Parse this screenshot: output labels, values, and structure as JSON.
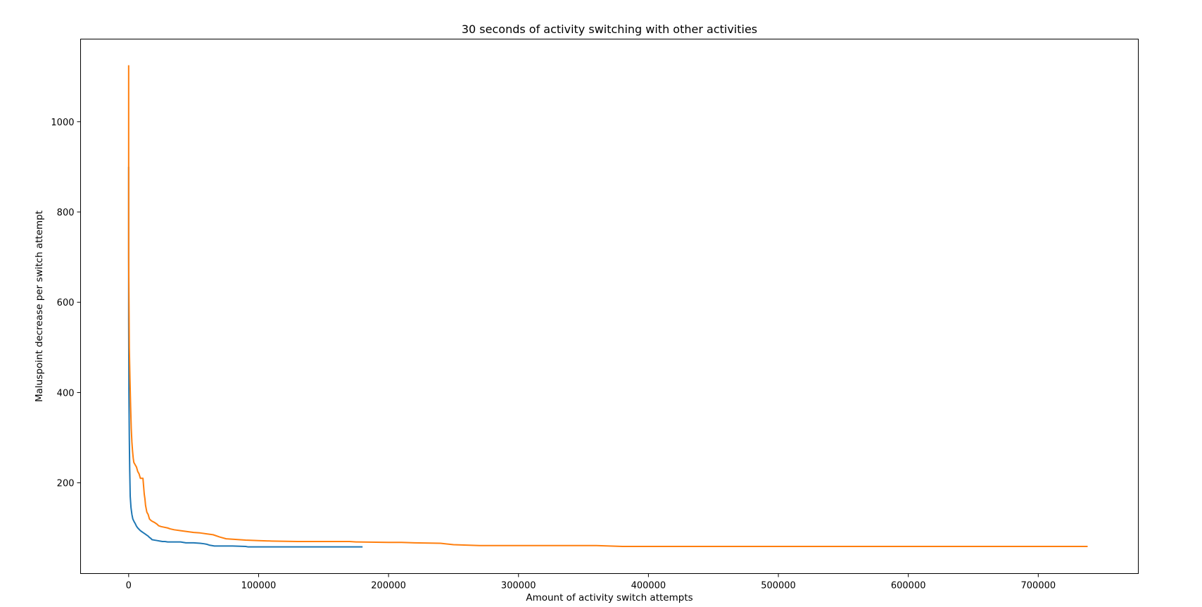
{
  "chart_data": {
    "type": "line",
    "title": "30 seconds of activity switching with other activities",
    "xlabel": "Amount of activity switch attempts",
    "ylabel": "Maluspoint decrease per switch attempt",
    "xlim": [
      -37000,
      777000
    ],
    "ylim": [
      -1,
      1183
    ],
    "xticks": [
      0,
      100000,
      200000,
      300000,
      400000,
      500000,
      600000,
      700000
    ],
    "yticks": [
      200,
      400,
      600,
      800,
      1000
    ],
    "grid": false,
    "legend": "none",
    "series": [
      {
        "color": "#1f77b4",
        "x": [
          0,
          0,
          200,
          500,
          800,
          1200,
          1800,
          2500,
          3200,
          4000,
          5000,
          6000,
          7000,
          8000,
          9000,
          10000,
          11000,
          12000,
          13000,
          14000,
          15000,
          16000,
          17000,
          18000,
          20000,
          22000,
          24000,
          26000,
          28000,
          30000,
          35000,
          40000,
          42000,
          44000,
          50000,
          55000,
          58000,
          60000,
          62000,
          64000,
          66000,
          70000,
          80000,
          90000,
          92000,
          100000,
          120000,
          150000,
          180000
        ],
        "y": [
          900,
          560,
          400,
          300,
          230,
          170,
          145,
          130,
          120,
          115,
          110,
          104,
          100,
          97,
          94,
          92,
          90,
          88,
          86,
          84,
          82,
          79,
          77,
          74,
          73,
          72,
          71,
          70,
          70,
          69,
          69,
          69,
          68,
          67,
          67,
          66,
          65,
          64,
          62,
          61,
          60,
          60,
          60,
          59,
          58,
          58,
          58,
          58,
          58
        ]
      },
      {
        "color": "#ff7f0e",
        "x": [
          0,
          0,
          500,
          1000,
          1500,
          2000,
          2500,
          3000,
          3500,
          4000,
          5000,
          6000,
          7000,
          8000,
          9000,
          10000,
          11000,
          12000,
          12500,
          13000,
          14000,
          15000,
          16000,
          17000,
          18000,
          20000,
          22000,
          23000,
          25000,
          30000,
          32000,
          35000,
          40000,
          45000,
          50000,
          55000,
          60000,
          65000,
          70000,
          75000,
          80000,
          90000,
          100000,
          110000,
          130000,
          150000,
          170000,
          175000,
          200000,
          210000,
          220000,
          240000,
          250000,
          260000,
          270000,
          300000,
          360000,
          380000,
          450000,
          550000,
          650000,
          738000
        ],
        "y": [
          1125,
          700,
          500,
          430,
          370,
          320,
          290,
          270,
          255,
          245,
          240,
          235,
          225,
          220,
          210,
          210,
          210,
          175,
          165,
          150,
          135,
          130,
          120,
          117,
          115,
          112,
          108,
          105,
          103,
          100,
          98,
          96,
          94,
          92,
          90,
          89,
          87,
          85,
          80,
          76,
          75,
          73,
          72,
          71,
          70,
          70,
          70,
          69,
          68,
          68,
          67,
          66,
          63,
          62,
          61,
          61,
          61,
          59,
          59,
          59,
          59,
          59
        ]
      }
    ]
  }
}
